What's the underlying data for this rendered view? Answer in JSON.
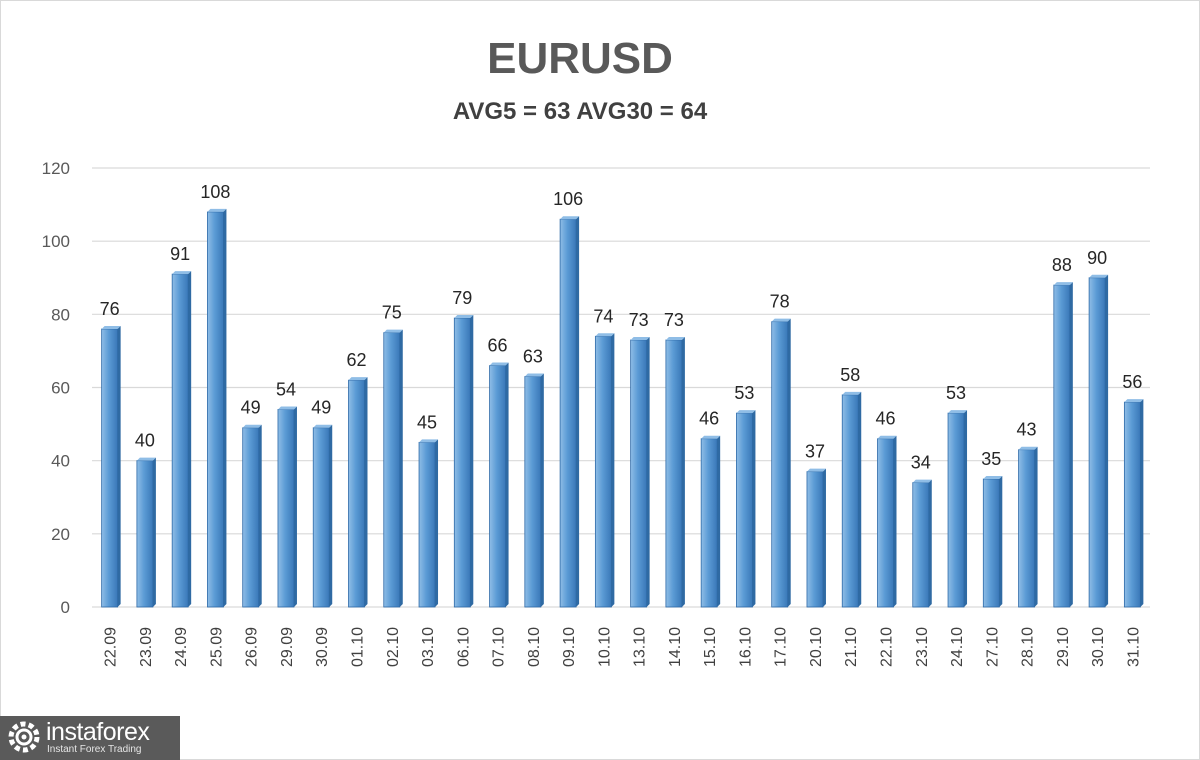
{
  "chart_data": {
    "type": "bar",
    "title": "EURUSD",
    "subtitle": "AVG5 = 63 AVG30 = 64",
    "xlabel": "",
    "ylabel": "",
    "ylim": [
      0,
      120
    ],
    "yticks": [
      0,
      20,
      40,
      60,
      80,
      100,
      120
    ],
    "grid": true,
    "legend": "none",
    "bar_color": "#5b9bd5",
    "categories": [
      "22.09",
      "23.09",
      "24.09",
      "25.09",
      "26.09",
      "29.09",
      "30.09",
      "01.10",
      "02.10",
      "03.10",
      "06.10",
      "07.10",
      "08.10",
      "09.10",
      "10.10",
      "13.10",
      "14.10",
      "15.10",
      "16.10",
      "17.10",
      "20.10",
      "21.10",
      "22.10",
      "23.10",
      "24.10",
      "27.10",
      "28.10",
      "29.10",
      "30.10",
      "31.10"
    ],
    "values": [
      76,
      40,
      91,
      108,
      49,
      54,
      49,
      62,
      75,
      45,
      79,
      66,
      63,
      106,
      74,
      73,
      73,
      46,
      53,
      78,
      37,
      58,
      46,
      34,
      53,
      35,
      43,
      88,
      90,
      56
    ]
  },
  "logo": {
    "name": "instaforex",
    "tagline": "Instant Forex Trading"
  }
}
